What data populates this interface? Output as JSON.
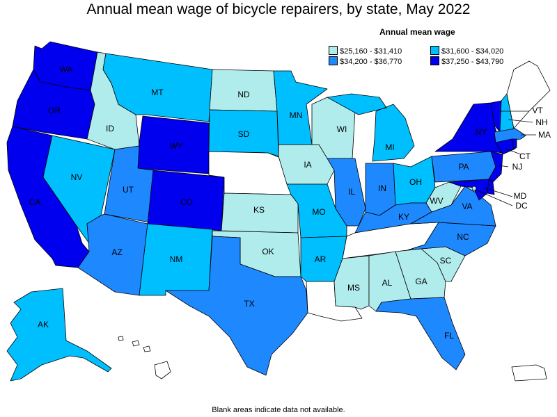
{
  "title": "Annual mean wage of bicycle repairers, by state, May 2022",
  "footnote": "Blank areas indicate data not available.",
  "legend": {
    "title": "Annual mean wage",
    "items": [
      {
        "label": "$25,160 - $31,410",
        "color": "#b0ecec"
      },
      {
        "label": "$31,600 - $34,020",
        "color": "#00bfff"
      },
      {
        "label": "$34,200 - $36,770",
        "color": "#1e88ff"
      },
      {
        "label": "$37,250 - $43,790",
        "color": "#0000ee"
      }
    ]
  },
  "colors": {
    "tier1": "#b0ecec",
    "tier2": "#00bfff",
    "tier3": "#1e88ff",
    "tier4": "#0000ee",
    "nodata": "#ffffff"
  },
  "states": {
    "WA": {
      "label": "WA",
      "tier": 4
    },
    "OR": {
      "label": "OR",
      "tier": 4
    },
    "CA": {
      "label": "CA",
      "tier": 4
    },
    "ID": {
      "label": "ID",
      "tier": 1
    },
    "NV": {
      "label": "NV",
      "tier": 2
    },
    "MT": {
      "label": "MT",
      "tier": 2
    },
    "WY": {
      "label": "WY",
      "tier": 4
    },
    "UT": {
      "label": "UT",
      "tier": 3
    },
    "CO": {
      "label": "CO",
      "tier": 4
    },
    "AZ": {
      "label": "AZ",
      "tier": 3
    },
    "NM": {
      "label": "NM",
      "tier": 2
    },
    "ND": {
      "label": "ND",
      "tier": 1
    },
    "SD": {
      "label": "SD",
      "tier": 2
    },
    "NE": {
      "label": "",
      "tier": 0
    },
    "KS": {
      "label": "KS",
      "tier": 1
    },
    "OK": {
      "label": "OK",
      "tier": 1
    },
    "TX": {
      "label": "TX",
      "tier": 3
    },
    "MN": {
      "label": "MN",
      "tier": 2
    },
    "IA": {
      "label": "IA",
      "tier": 1
    },
    "MO": {
      "label": "MO",
      "tier": 2
    },
    "AR": {
      "label": "AR",
      "tier": 2
    },
    "LA": {
      "label": "",
      "tier": 0
    },
    "WI": {
      "label": "WI",
      "tier": 1
    },
    "IL": {
      "label": "IL",
      "tier": 3
    },
    "MI": {
      "label": "MI",
      "tier": 2
    },
    "IN": {
      "label": "IN",
      "tier": 3
    },
    "OH": {
      "label": "OH",
      "tier": 2
    },
    "KY": {
      "label": "KY",
      "tier": 3
    },
    "TN": {
      "label": "",
      "tier": 0
    },
    "MS": {
      "label": "MS",
      "tier": 1
    },
    "AL": {
      "label": "AL",
      "tier": 1
    },
    "GA": {
      "label": "GA",
      "tier": 1
    },
    "FL": {
      "label": "FL",
      "tier": 3
    },
    "SC": {
      "label": "SC",
      "tier": 1
    },
    "NC": {
      "label": "NC",
      "tier": 3
    },
    "VA": {
      "label": "VA",
      "tier": 3
    },
    "WV": {
      "label": "WV",
      "tier": 1
    },
    "PA": {
      "label": "PA",
      "tier": 3
    },
    "NY": {
      "label": "NY",
      "tier": 4
    },
    "VT": {
      "label": "VT",
      "tier": 4
    },
    "NH": {
      "label": "NH",
      "tier": 2
    },
    "ME": {
      "label": "",
      "tier": 0
    },
    "MA": {
      "label": "MA",
      "tier": 3
    },
    "CT": {
      "label": "CT",
      "tier": 4
    },
    "RI": {
      "label": "",
      "tier": 4
    },
    "NJ": {
      "label": "NJ",
      "tier": 4
    },
    "DE": {
      "label": "",
      "tier": 4
    },
    "MD": {
      "label": "MD",
      "tier": 4
    },
    "DC": {
      "label": "DC",
      "tier": 1
    },
    "AK": {
      "label": "AK",
      "tier": 2
    },
    "HI": {
      "label": "",
      "tier": 0
    },
    "PR": {
      "label": "",
      "tier": 0
    }
  }
}
